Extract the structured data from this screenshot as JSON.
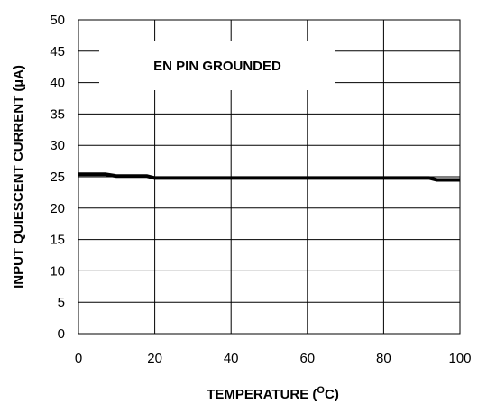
{
  "chart_data": {
    "type": "line",
    "title": "",
    "xlabel_main": "TEMPERATURE (",
    "xlabel_sup": "O",
    "xlabel_end": "C)",
    "ylabel": "INPUT QUIESCENT CURRENT (µA)",
    "xlim": [
      0,
      100
    ],
    "ylim": [
      0,
      50
    ],
    "x_ticks": [
      0,
      20,
      40,
      60,
      80,
      100
    ],
    "y_ticks": [
      0,
      5,
      10,
      15,
      20,
      25,
      30,
      35,
      40,
      45,
      50
    ],
    "grid": true,
    "annotation": "EN PIN GROUNDED",
    "series": [
      {
        "x": [
          0,
          7,
          10,
          18,
          20,
          92,
          94,
          100
        ],
        "y": [
          25.4,
          25.4,
          25.1,
          25.1,
          24.8,
          24.8,
          24.5,
          24.5
        ],
        "color": "#000000"
      }
    ]
  }
}
